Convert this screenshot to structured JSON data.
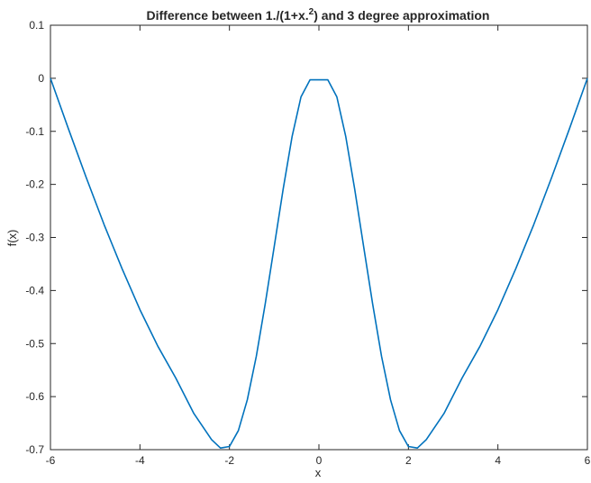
{
  "chart_data": {
    "type": "line",
    "title": "Difference between 1./(1+x.^2) and 3 degree approximation",
    "title_parts": {
      "before_sup": "Difference between 1./(1+x.",
      "sup": "2",
      "after_sup": ") and 3 degree approximation"
    },
    "xlabel": "x",
    "ylabel": "f(x)",
    "xlim": [
      -6,
      6
    ],
    "ylim": [
      -0.7,
      0.1
    ],
    "x_ticks": [
      -6,
      -4,
      -2,
      0,
      2,
      4,
      6
    ],
    "x_tick_labels": [
      "-6",
      "-4",
      "-2",
      "0",
      "2",
      "4",
      "6"
    ],
    "y_ticks": [
      0.1,
      0,
      -0.1,
      -0.2,
      -0.3,
      -0.4,
      -0.5,
      -0.6,
      -0.7
    ],
    "y_tick_labels": [
      "0.1",
      "0",
      "-0.1",
      "-0.2",
      "-0.3",
      "-0.4",
      "-0.5",
      "-0.6",
      "-0.7"
    ],
    "grid": false,
    "line_color": "#0072bd",
    "series": [
      {
        "x": [
          -6,
          -5.6,
          -5.2,
          -4.8,
          -4.4,
          -4,
          -3.6,
          -3.2,
          -2.8,
          -2.4,
          -2.2,
          -2,
          -1.8,
          -1.6,
          -1.4,
          -1.2,
          -1,
          -0.8,
          -0.6,
          -0.4,
          -0.2,
          0,
          0.2,
          0.4,
          0.6,
          0.8,
          1,
          1.2,
          1.4,
          1.6,
          1.8,
          2,
          2.2,
          2.4,
          2.8,
          3.2,
          3.6,
          4,
          4.4,
          4.8,
          5.2,
          5.6,
          6
        ],
        "y": [
          0.0,
          -0.095,
          -0.187,
          -0.276,
          -0.359,
          -0.436,
          -0.505,
          -0.565,
          -0.631,
          -0.681,
          -0.697,
          -0.694,
          -0.664,
          -0.606,
          -0.524,
          -0.425,
          -0.318,
          -0.209,
          -0.11,
          -0.035,
          -0.003,
          -0.003,
          -0.003,
          -0.035,
          -0.11,
          -0.209,
          -0.318,
          -0.425,
          -0.524,
          -0.606,
          -0.664,
          -0.694,
          -0.697,
          -0.681,
          -0.631,
          -0.565,
          -0.505,
          -0.436,
          -0.359,
          -0.276,
          -0.187,
          -0.095,
          0.0
        ]
      }
    ]
  }
}
